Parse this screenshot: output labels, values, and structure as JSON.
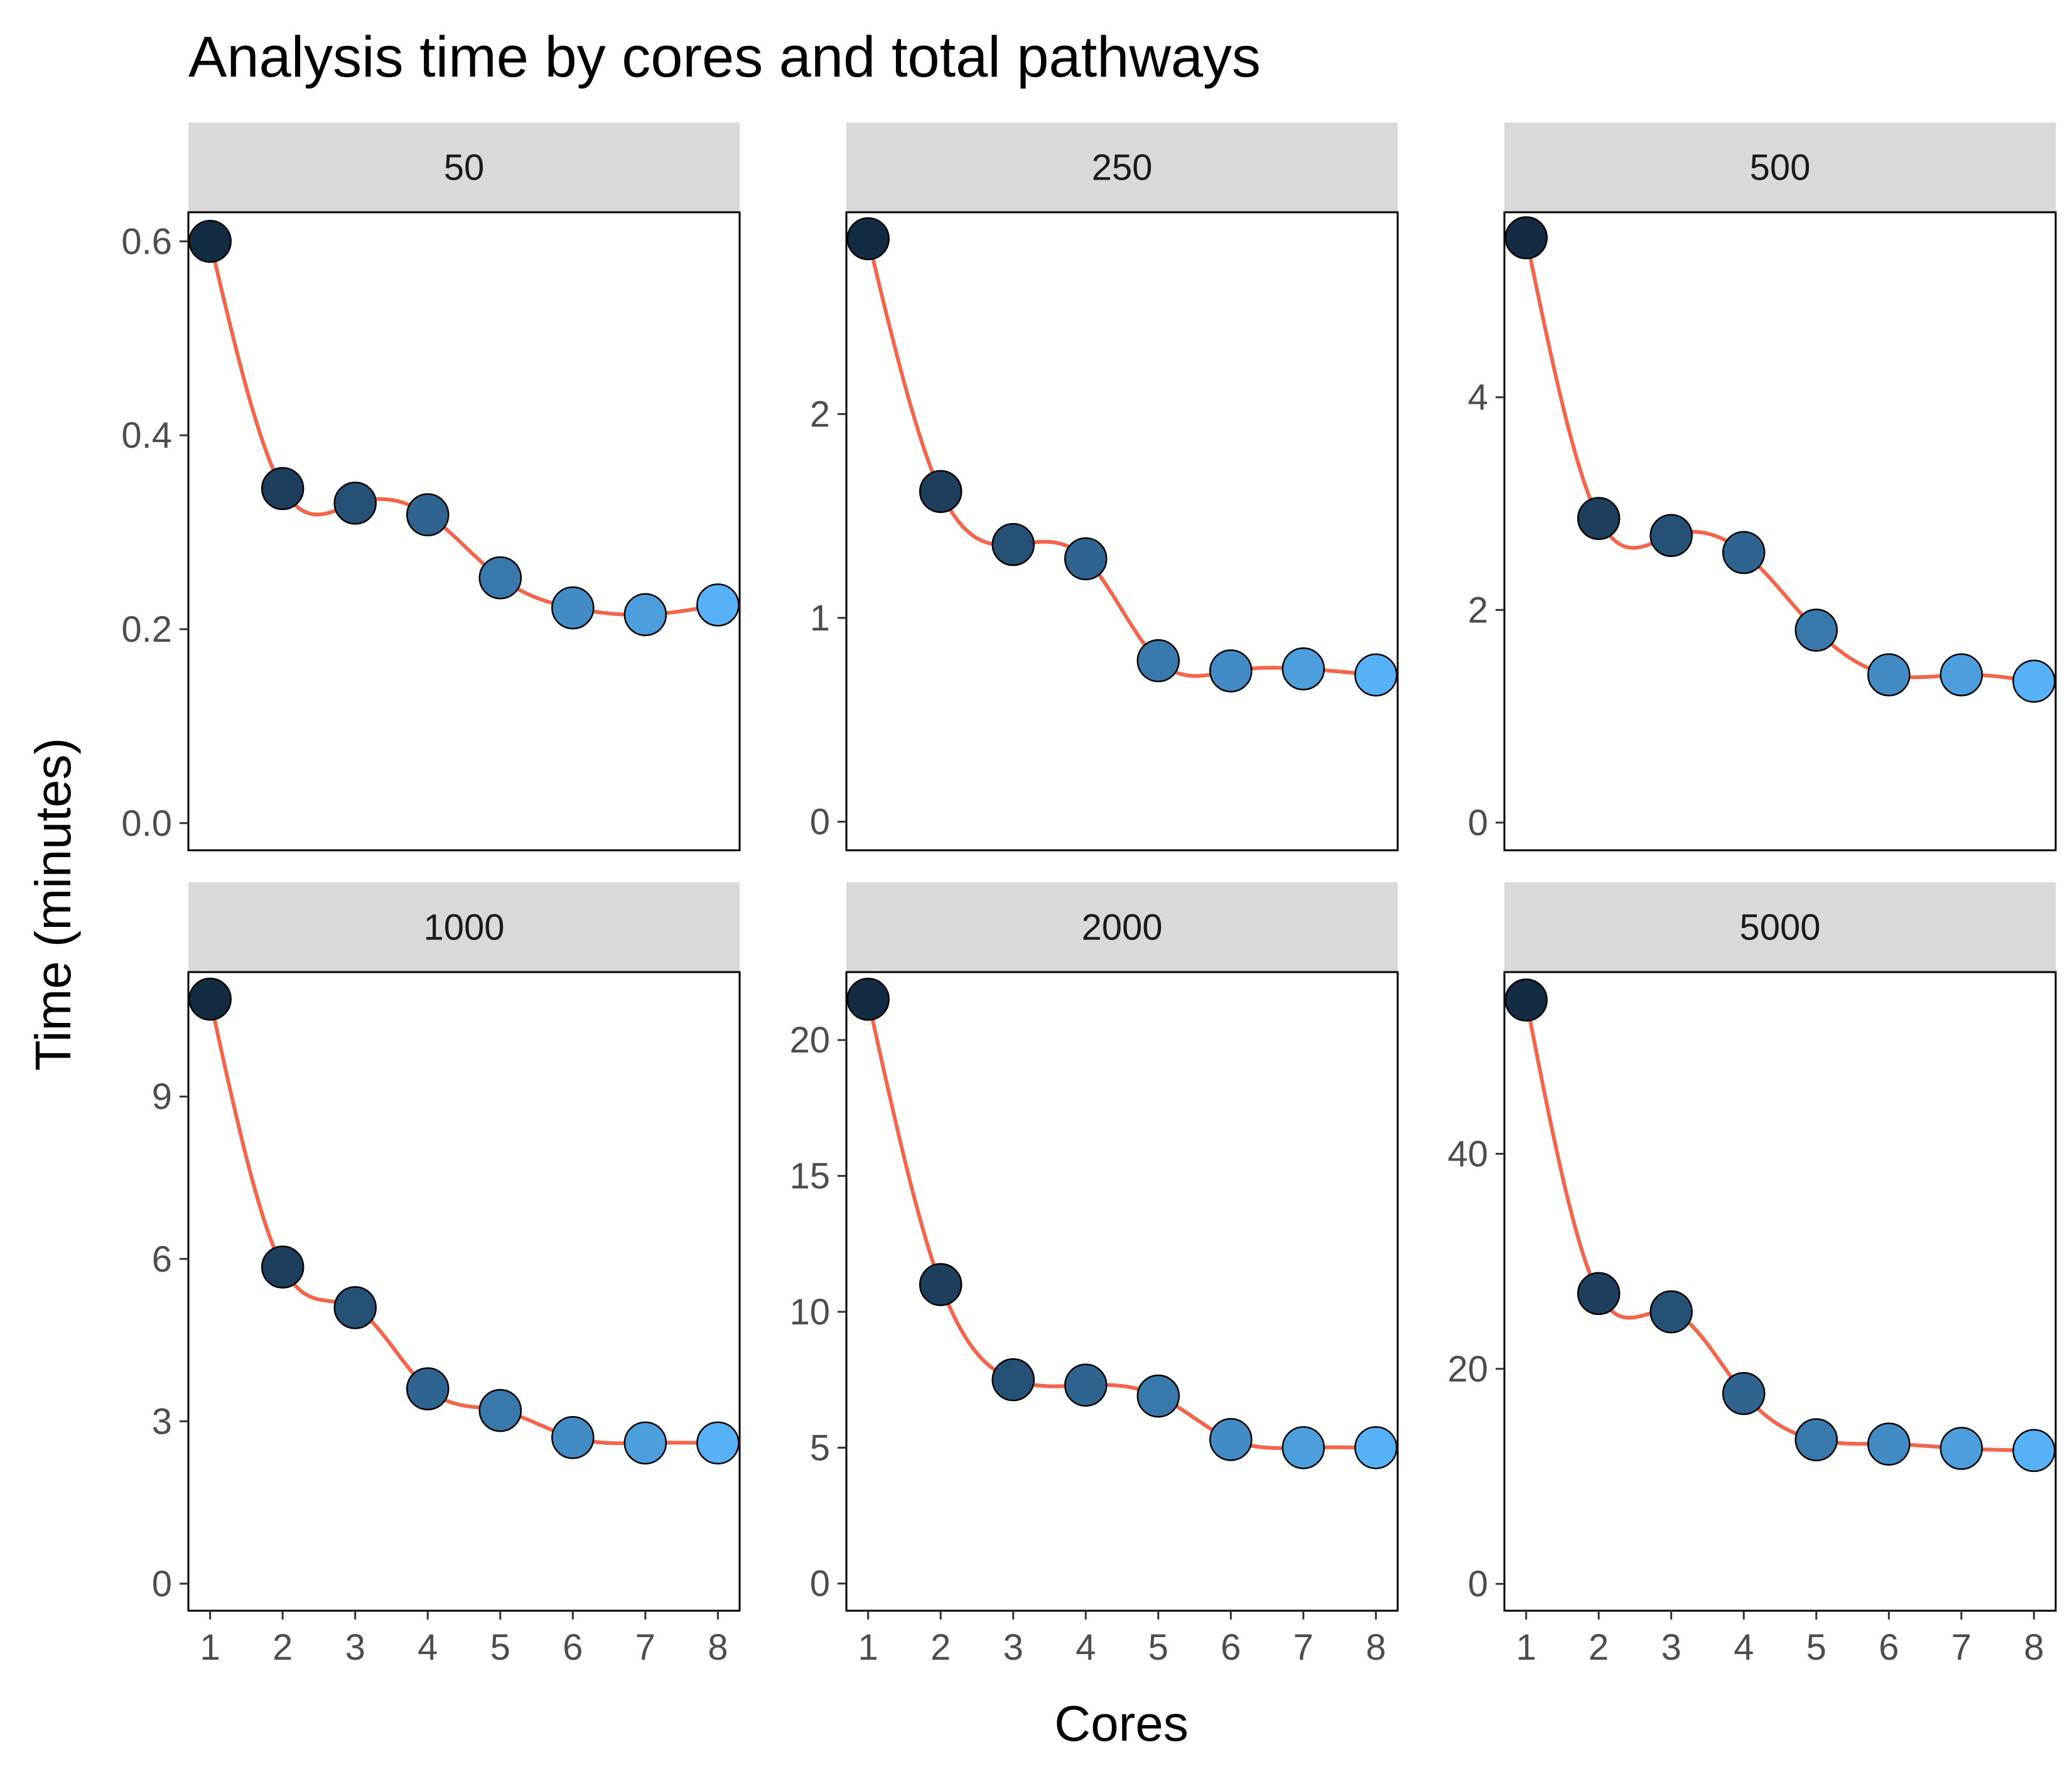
{
  "chart_data": {
    "type": "scatter",
    "title": "Analysis time by cores and total pathways",
    "xlabel": "Cores",
    "ylabel": "Time (minutes)",
    "x": [
      1,
      2,
      3,
      4,
      5,
      6,
      7,
      8
    ],
    "x_ticks": [
      "1",
      "2",
      "3",
      "4",
      "5",
      "6",
      "7",
      "8"
    ],
    "xlim": [
      0.7,
      8.3
    ],
    "grid": false,
    "smooth_line": true,
    "colors": {
      "smooth_line": "#f2654a",
      "point_gradient": [
        "#132b43",
        "#56b1f7"
      ],
      "point_outline": "#000000",
      "strip_background": "#d9d9d9",
      "panel_border": "#000000"
    },
    "panels": [
      {
        "label": "50",
        "values": [
          0.6,
          0.345,
          0.33,
          0.318,
          0.253,
          0.222,
          0.215,
          0.225
        ],
        "ylim": [
          -0.028,
          0.63
        ],
        "yticks": [
          0,
          0.2,
          0.4,
          0.6
        ],
        "ytick_labels": [
          "0.0",
          "0.2",
          "0.4",
          "0.6"
        ]
      },
      {
        "label": "250",
        "values": [
          2.86,
          1.62,
          1.36,
          1.29,
          0.79,
          0.74,
          0.75,
          0.72
        ],
        "ylim": [
          -0.14,
          2.99
        ],
        "yticks": [
          0,
          1,
          2
        ],
        "ytick_labels": [
          "0",
          "1",
          "2"
        ]
      },
      {
        "label": "500",
        "values": [
          5.5,
          2.86,
          2.7,
          2.54,
          1.81,
          1.39,
          1.39,
          1.33
        ],
        "ylim": [
          -0.26,
          5.74
        ],
        "yticks": [
          0,
          2,
          4
        ],
        "ytick_labels": [
          "0",
          "2",
          "4"
        ]
      },
      {
        "label": "1000",
        "values": [
          10.8,
          5.85,
          5.1,
          3.6,
          3.2,
          2.7,
          2.6,
          2.6
        ],
        "ylim": [
          -0.5,
          11.3
        ],
        "yticks": [
          0,
          3,
          6,
          9
        ],
        "ytick_labels": [
          "0",
          "3",
          "6",
          "9"
        ]
      },
      {
        "label": "2000",
        "values": [
          21.5,
          11.0,
          7.5,
          7.3,
          6.9,
          5.3,
          5.0,
          5.0
        ],
        "ylim": [
          -1.0,
          22.5
        ],
        "yticks": [
          0,
          5,
          10,
          15,
          20
        ],
        "ytick_labels": [
          "0",
          "5",
          "10",
          "15",
          "20"
        ]
      },
      {
        "label": "5000",
        "values": [
          54.3,
          27.0,
          25.3,
          17.7,
          13.4,
          13.0,
          12.6,
          12.4
        ],
        "ylim": [
          -2.5,
          56.9
        ],
        "yticks": [
          0,
          20,
          40
        ],
        "ytick_labels": [
          "0",
          "20",
          "40"
        ]
      }
    ]
  }
}
